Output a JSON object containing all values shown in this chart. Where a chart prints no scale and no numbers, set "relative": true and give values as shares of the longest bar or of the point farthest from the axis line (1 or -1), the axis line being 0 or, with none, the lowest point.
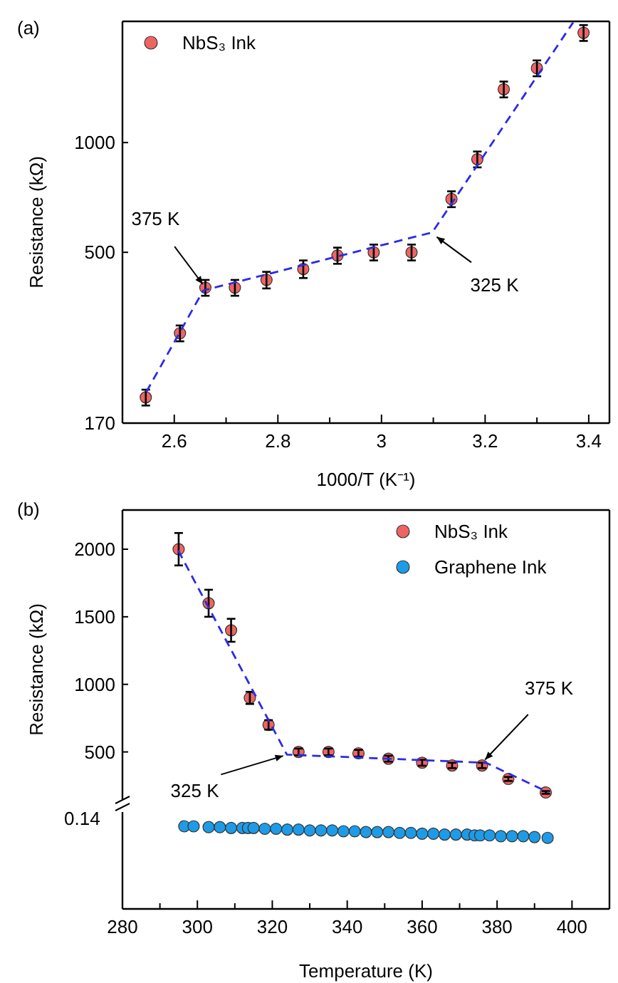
{
  "chart_data": [
    {
      "type": "scatter",
      "annotations": [
        "(a)",
        {
          "text": "375 K",
          "x": 2.66,
          "y": 400
        },
        {
          "text": "325 K",
          "x": 3.1,
          "y": 560
        }
      ],
      "xlabel": "1000/T (K⁻¹)",
      "ylabel": "Resistance (kΩ)",
      "log": "y",
      "xlim": [
        2.5,
        3.44
      ],
      "xticks": [
        2.6,
        {
          "value": 2.7,
          "label": null
        },
        2.8,
        {
          "value": 2.9,
          "label": null
        },
        3.0,
        {
          "value": 3.1,
          "label": null
        },
        3.2,
        {
          "value": 3.3,
          "label": null
        },
        3.4
      ],
      "ylim": [
        170,
        2150
      ],
      "yticks": [
        170,
        500,
        1000
      ],
      "legend": "top left",
      "marker": "circle",
      "series": [
        {
          "name": "NbS₃ Ink",
          "color": "#ef6461",
          "x": [
            2.545,
            2.611,
            2.66,
            2.717,
            2.778,
            2.849,
            2.915,
            2.985,
            3.058,
            3.135,
            3.185,
            3.236,
            3.3,
            3.39
          ],
          "values": [
            200,
            300,
            400,
            400,
            420,
            450,
            490,
            500,
            500,
            700,
            900,
            1400,
            1600,
            2000
          ],
          "errors": [
            10,
            15,
            20,
            20,
            22,
            25,
            25,
            25,
            25,
            35,
            45,
            70,
            80,
            100
          ]
        },
        {
          "type": "line",
          "color": "#2b2be8",
          "line_style": "dashed",
          "marker": "none",
          "x": [
            2.546,
            2.656,
            3.098,
            3.37
          ],
          "values": [
            207,
            393,
            567,
            2137
          ]
        }
      ]
    },
    {
      "type": "scatter",
      "annotations": [
        "(b)",
        {
          "text": "325 K",
          "x": 324,
          "y": 480
        },
        {
          "text": "375 K",
          "x": 376,
          "y": 420
        }
      ],
      "ylabel": "Resistance (kΩ)",
      "xlim": [
        280,
        410
      ],
      "ylim": [
        150,
        2290
      ],
      "yticks": [
        500,
        1000,
        1500,
        2000
      ],
      "tick_labels": "y",
      "legend": "top right",
      "marker": "circle",
      "series": [
        {
          "name": "NbS₃ Ink",
          "color": "#ef6461",
          "x": [
            295,
            303,
            309,
            314,
            319,
            327,
            335,
            343,
            351,
            360,
            368,
            376,
            383,
            393
          ],
          "values": [
            2000,
            1600,
            1400,
            900,
            700,
            500,
            500,
            490,
            450,
            420,
            400,
            400,
            300,
            200
          ],
          "errors": [
            120,
            100,
            85,
            45,
            35,
            25,
            25,
            25,
            22,
            22,
            20,
            20,
            15,
            10
          ]
        },
        {
          "type": "line",
          "color": "#2b2be8",
          "line_style": "dashed",
          "marker": "none",
          "x": [
            294.9,
            323.9,
            377,
            393.8
          ],
          "values": [
            1990,
            480,
            420,
            200
          ]
        }
      ]
    },
    {
      "type": "scatter",
      "relative": true,
      "annotations": [
        "0.14"
      ],
      "xlabel": "Temperature (K)",
      "xlim": [
        280,
        410
      ],
      "xticks": [
        280,
        {
          "value": 290,
          "label": null
        },
        300,
        {
          "value": 310,
          "label": null
        },
        320,
        {
          "value": 330,
          "label": null
        },
        340,
        {
          "value": 350,
          "label": null
        },
        360,
        {
          "value": 370,
          "label": null
        },
        380,
        {
          "value": 390,
          "label": null
        },
        400
      ],
      "tick_labels": "x",
      "legend": "top right",
      "marker": "circle",
      "series": [
        {
          "name": "Graphene Ink",
          "color": "#1e9be6",
          "x": [
            296.5,
            299,
            303,
            306,
            309,
            312,
            313.5,
            315,
            318,
            321,
            324,
            327,
            330,
            333,
            336,
            339,
            342,
            345,
            348,
            351,
            354,
            357,
            360,
            363,
            366,
            369,
            372,
            374,
            375.5,
            378,
            381,
            384,
            387,
            390,
            393.5
          ],
          "values": [
            1,
            1,
            0.99,
            0.99,
            0.98,
            0.98,
            0.98,
            0.98,
            0.97,
            0.97,
            0.96,
            0.96,
            0.95,
            0.95,
            0.95,
            0.94,
            0.94,
            0.93,
            0.93,
            0.93,
            0.92,
            0.92,
            0.91,
            0.91,
            0.9,
            0.9,
            0.9,
            0.89,
            0.89,
            0.89,
            0.88,
            0.88,
            0.88,
            0.87,
            0.86
          ]
        }
      ]
    }
  ]
}
